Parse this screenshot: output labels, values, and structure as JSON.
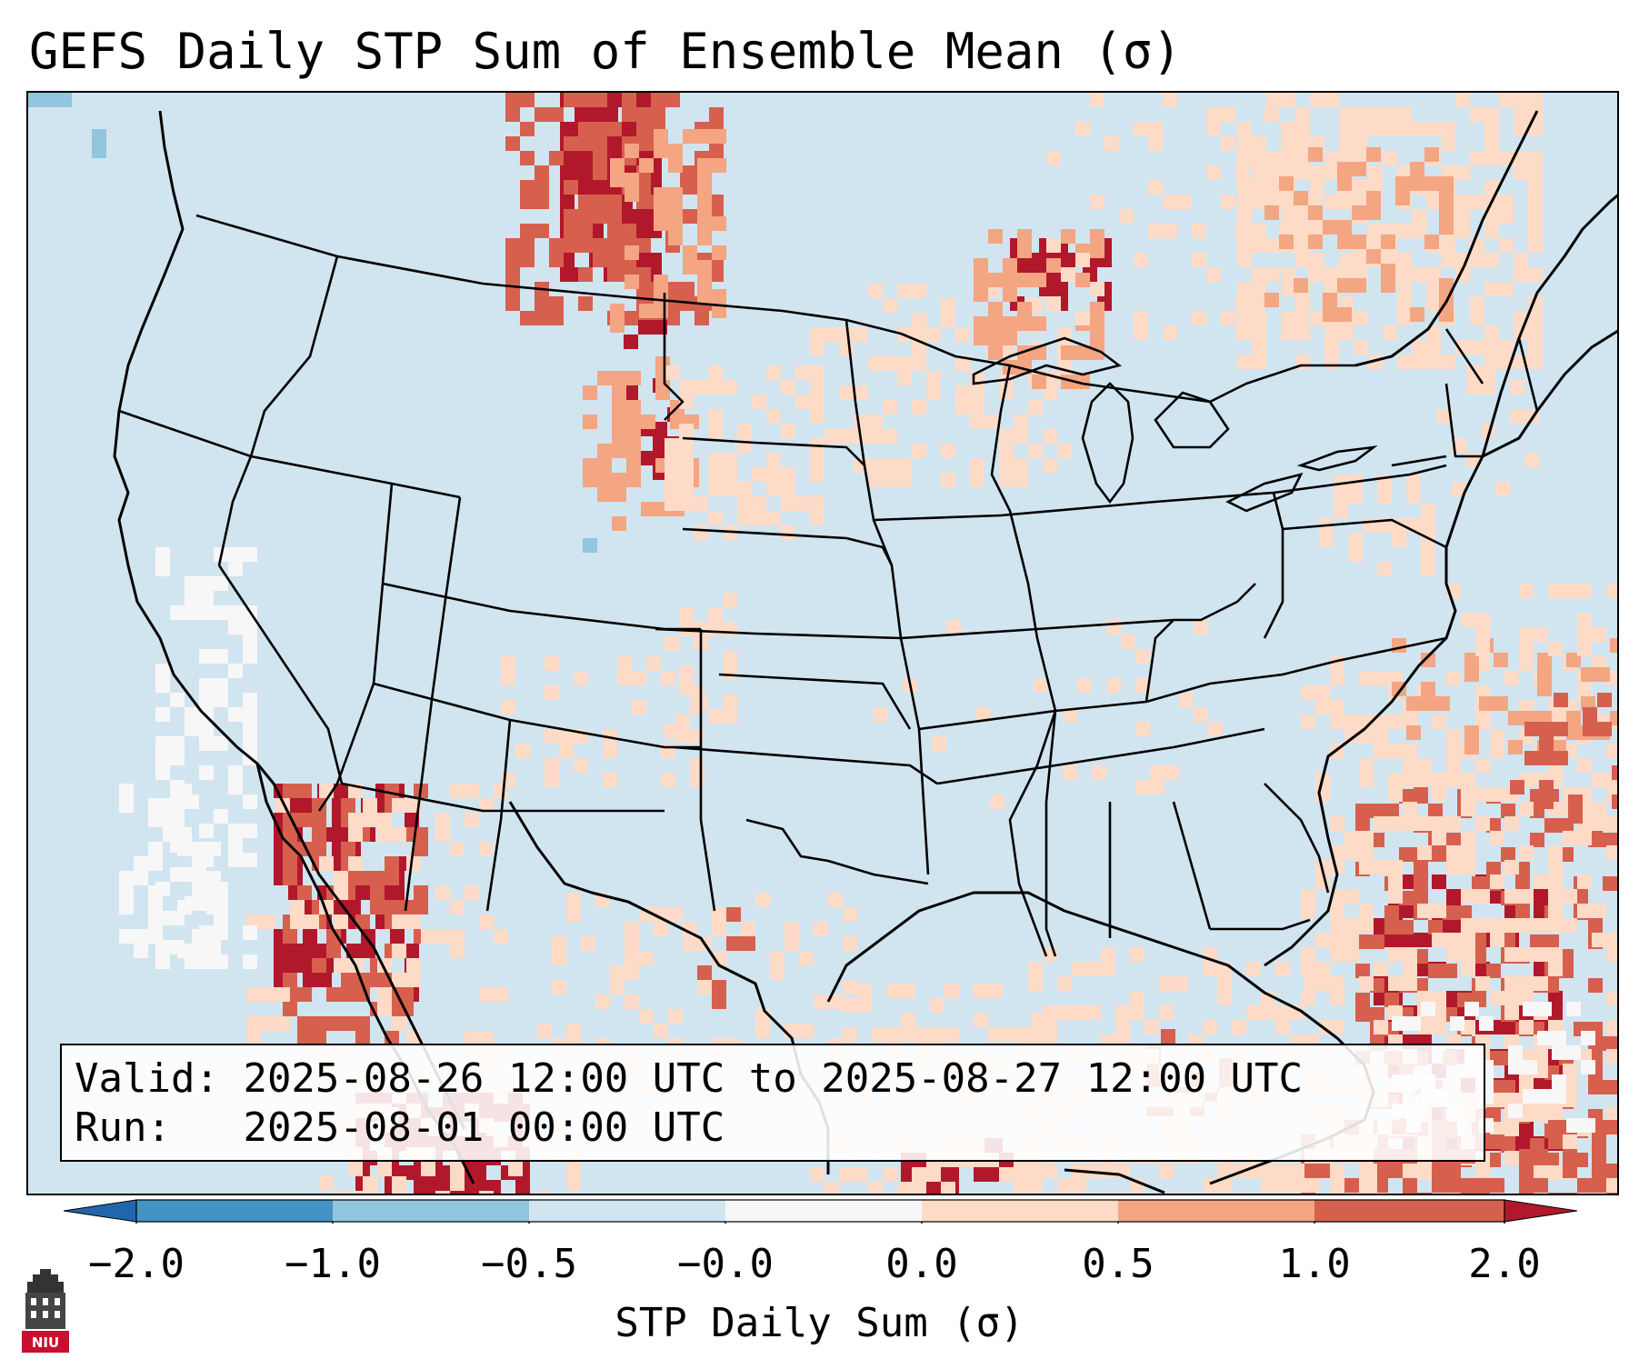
{
  "title": "GEFS Daily STP Sum of Ensemble Mean (σ)",
  "info": {
    "valid_label": "Valid:",
    "valid_value": "2025-08-26 12:00 UTC to 2025-08-27 12:00 UTC",
    "run_label": "Run:",
    "run_value": "2025-08-01 00:00 UTC"
  },
  "colorbar": {
    "label": "STP Daily Sum (σ)",
    "ticks": [
      "−2.0",
      "−1.0",
      "−0.5",
      "−0.0",
      "0.0",
      "0.5",
      "1.0",
      "2.0"
    ],
    "colors": {
      "extend_low": "#2166ac",
      "bin_-2_-1": "#4393c3",
      "bin_-1_-0.5": "#92c5de",
      "bin_-0.5_0": "#d1e5f0",
      "bin_0_0": "#f7f7f7",
      "bin_0_0.5": "#fddbc7",
      "bin_0.5_1": "#f4a582",
      "bin_1_2": "#d6604d",
      "extend_high": "#b2182b"
    }
  },
  "logo": {
    "text": "NIU",
    "color": "#c8102e"
  },
  "map_background": "#d1e5f0"
}
